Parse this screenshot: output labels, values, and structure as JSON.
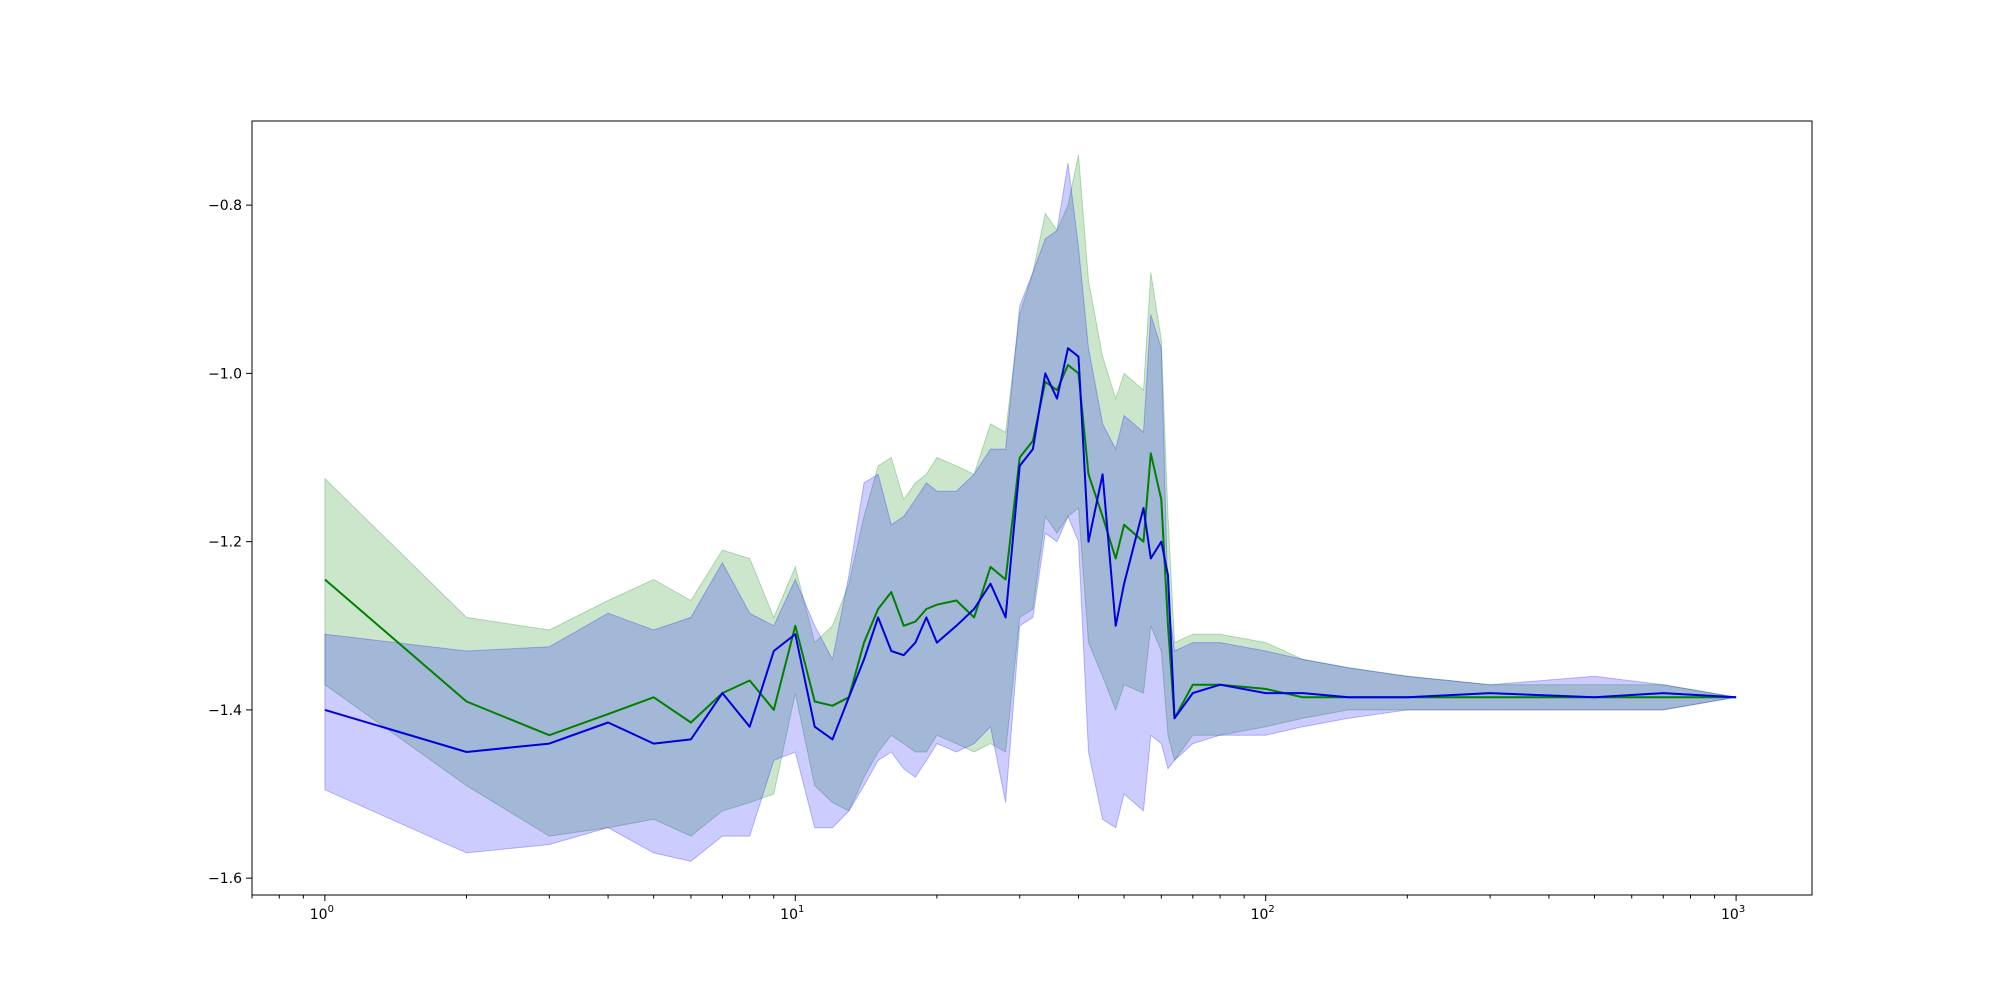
{
  "chart_data": {
    "type": "line",
    "title": "",
    "xlabel": "",
    "ylabel": "",
    "xscale": "log",
    "xlim": [
      0.7,
      1450
    ],
    "ylim": [
      -1.62,
      -0.7
    ],
    "grid": false,
    "xticks": [
      {
        "value": 1,
        "base": "10",
        "exp": "0"
      },
      {
        "value": 10,
        "base": "10",
        "exp": "1"
      },
      {
        "value": 100,
        "base": "10",
        "exp": "2"
      },
      {
        "value": 1000,
        "base": "10",
        "exp": "3"
      }
    ],
    "yticks": [
      {
        "value": -1.6,
        "label": "−1.6"
      },
      {
        "value": -1.4,
        "label": "−1.4"
      },
      {
        "value": -1.2,
        "label": "−1.2"
      },
      {
        "value": -1.0,
        "label": "−1.0"
      },
      {
        "value": -0.8,
        "label": "−0.8"
      }
    ],
    "series": [
      {
        "color": "#008000",
        "band_color": "#008000",
        "band_opacity": 0.2,
        "x": [
          1,
          2,
          3,
          4,
          5,
          6,
          7,
          8,
          9,
          10,
          11,
          12,
          13,
          14,
          15,
          16,
          17,
          18,
          19,
          20,
          22,
          24,
          26,
          28,
          30,
          32,
          34,
          36,
          38,
          40,
          42,
          45,
          48,
          50,
          55,
          57,
          60,
          62,
          64,
          70,
          80,
          100,
          120,
          150,
          200,
          300,
          500,
          700,
          1000
        ],
        "y": [
          -1.245,
          -1.39,
          -1.43,
          -1.405,
          -1.385,
          -1.415,
          -1.38,
          -1.365,
          -1.4,
          -1.3,
          -1.39,
          -1.395,
          -1.385,
          -1.32,
          -1.28,
          -1.26,
          -1.3,
          -1.295,
          -1.28,
          -1.275,
          -1.27,
          -1.29,
          -1.23,
          -1.245,
          -1.1,
          -1.08,
          -1.01,
          -1.02,
          -0.99,
          -1.0,
          -1.12,
          -1.17,
          -1.22,
          -1.18,
          -1.2,
          -1.095,
          -1.15,
          -1.3,
          -1.41,
          -1.37,
          -1.37,
          -1.375,
          -1.385,
          -1.385,
          -1.385,
          -1.385,
          -1.385,
          -1.385,
          -1.385
        ],
        "lower": [
          -1.37,
          -1.49,
          -1.55,
          -1.54,
          -1.53,
          -1.55,
          -1.52,
          -1.51,
          -1.5,
          -1.38,
          -1.49,
          -1.51,
          -1.52,
          -1.48,
          -1.45,
          -1.43,
          -1.44,
          -1.45,
          -1.45,
          -1.43,
          -1.44,
          -1.45,
          -1.44,
          -1.45,
          -1.29,
          -1.28,
          -1.17,
          -1.19,
          -1.17,
          -1.16,
          -1.32,
          -1.36,
          -1.4,
          -1.37,
          -1.38,
          -1.3,
          -1.33,
          -1.43,
          -1.46,
          -1.43,
          -1.43,
          -1.42,
          -1.41,
          -1.4,
          -1.4,
          -1.4,
          -1.4,
          -1.4,
          -1.385
        ],
        "upper": [
          -1.125,
          -1.29,
          -1.305,
          -1.27,
          -1.245,
          -1.27,
          -1.21,
          -1.22,
          -1.29,
          -1.23,
          -1.32,
          -1.3,
          -1.25,
          -1.17,
          -1.11,
          -1.1,
          -1.15,
          -1.13,
          -1.12,
          -1.1,
          -1.11,
          -1.12,
          -1.06,
          -1.07,
          -0.93,
          -0.88,
          -0.81,
          -0.83,
          -0.8,
          -0.74,
          -0.89,
          -0.98,
          -1.03,
          -1.0,
          -1.02,
          -0.88,
          -0.96,
          -1.17,
          -1.32,
          -1.31,
          -1.31,
          -1.32,
          -1.34,
          -1.35,
          -1.36,
          -1.37,
          -1.37,
          -1.37,
          -1.385
        ]
      },
      {
        "color": "#0000dd",
        "band_color": "#0000ff",
        "band_opacity": 0.2,
        "x": [
          1,
          2,
          3,
          4,
          5,
          6,
          7,
          8,
          9,
          10,
          11,
          12,
          13,
          14,
          15,
          16,
          17,
          18,
          19,
          20,
          22,
          24,
          26,
          28,
          30,
          32,
          34,
          36,
          38,
          40,
          42,
          45,
          48,
          50,
          55,
          57,
          60,
          62,
          64,
          70,
          80,
          100,
          120,
          150,
          200,
          300,
          500,
          700,
          1000
        ],
        "y": [
          -1.4,
          -1.45,
          -1.44,
          -1.415,
          -1.44,
          -1.435,
          -1.38,
          -1.42,
          -1.33,
          -1.31,
          -1.42,
          -1.435,
          -1.385,
          -1.34,
          -1.29,
          -1.33,
          -1.335,
          -1.32,
          -1.29,
          -1.32,
          -1.3,
          -1.28,
          -1.25,
          -1.29,
          -1.11,
          -1.09,
          -1.0,
          -1.03,
          -0.97,
          -0.98,
          -1.2,
          -1.12,
          -1.3,
          -1.25,
          -1.16,
          -1.22,
          -1.2,
          -1.24,
          -1.41,
          -1.38,
          -1.37,
          -1.38,
          -1.38,
          -1.385,
          -1.385,
          -1.38,
          -1.385,
          -1.38,
          -1.385
        ],
        "lower": [
          -1.495,
          -1.57,
          -1.56,
          -1.54,
          -1.57,
          -1.58,
          -1.55,
          -1.55,
          -1.46,
          -1.45,
          -1.54,
          -1.54,
          -1.52,
          -1.49,
          -1.46,
          -1.45,
          -1.47,
          -1.48,
          -1.46,
          -1.44,
          -1.45,
          -1.44,
          -1.42,
          -1.51,
          -1.3,
          -1.29,
          -1.19,
          -1.2,
          -1.17,
          -1.2,
          -1.45,
          -1.53,
          -1.54,
          -1.5,
          -1.52,
          -1.43,
          -1.44,
          -1.47,
          -1.46,
          -1.44,
          -1.43,
          -1.43,
          -1.42,
          -1.41,
          -1.4,
          -1.4,
          -1.4,
          -1.4,
          -1.385
        ],
        "upper": [
          -1.31,
          -1.33,
          -1.325,
          -1.285,
          -1.305,
          -1.29,
          -1.225,
          -1.285,
          -1.3,
          -1.245,
          -1.3,
          -1.34,
          -1.24,
          -1.13,
          -1.12,
          -1.18,
          -1.17,
          -1.15,
          -1.13,
          -1.14,
          -1.14,
          -1.12,
          -1.09,
          -1.09,
          -0.92,
          -0.88,
          -0.84,
          -0.83,
          -0.75,
          -0.85,
          -0.97,
          -1.06,
          -1.09,
          -1.05,
          -1.07,
          -0.93,
          -0.97,
          -1.27,
          -1.33,
          -1.32,
          -1.32,
          -1.33,
          -1.34,
          -1.35,
          -1.36,
          -1.37,
          -1.36,
          -1.37,
          -1.385
        ]
      }
    ]
  }
}
